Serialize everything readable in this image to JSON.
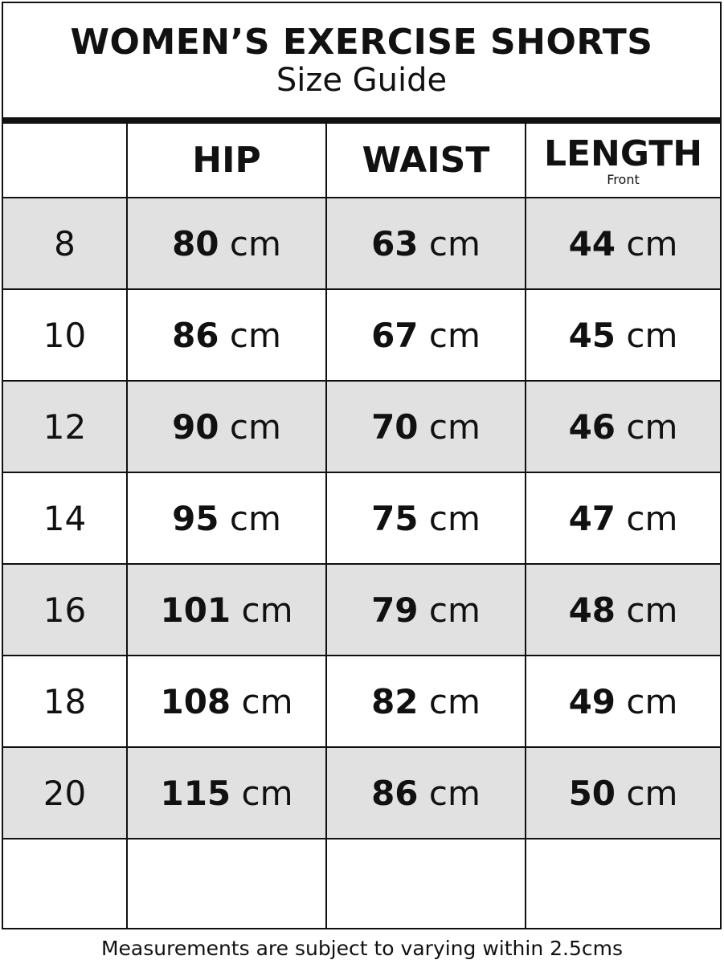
{
  "title": "WOMEN’S EXERCISE SHORTS",
  "subtitle": "Size Guide",
  "columns": [
    {
      "label": "",
      "sub": ""
    },
    {
      "label": "HIP",
      "sub": ""
    },
    {
      "label": "WAIST",
      "sub": ""
    },
    {
      "label": "LENGTH",
      "sub": "Front"
    }
  ],
  "unit": "cm",
  "rows": [
    {
      "size": "8",
      "hip": "80",
      "waist": "63",
      "length": "44"
    },
    {
      "size": "10",
      "hip": "86",
      "waist": "67",
      "length": "45"
    },
    {
      "size": "12",
      "hip": "90",
      "waist": "70",
      "length": "46"
    },
    {
      "size": "14",
      "hip": "95",
      "waist": "75",
      "length": "47"
    },
    {
      "size": "16",
      "hip": "101",
      "waist": "79",
      "length": "48"
    },
    {
      "size": "18",
      "hip": "108",
      "waist": "82",
      "length": "49"
    },
    {
      "size": "20",
      "hip": "115",
      "waist": "86",
      "length": "50"
    }
  ],
  "footer": "Measurements are subject to varying within 2.5cms",
  "colors": {
    "shade": "#e0e1e0",
    "border": "#111111"
  }
}
